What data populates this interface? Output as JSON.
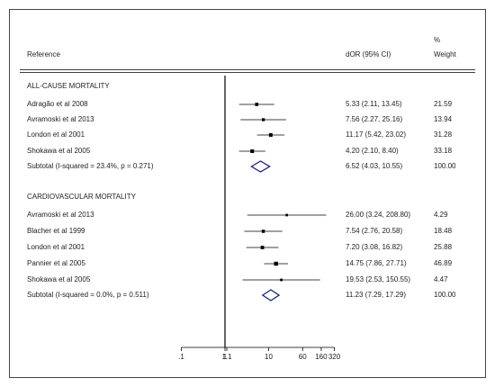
{
  "chart_data": {
    "type": "forest",
    "headers": {
      "reference": "Reference",
      "estimate": "dOR (95% CI)",
      "weight_line1": "%",
      "weight_line2": "Weight"
    },
    "scale": "log",
    "reference_line": 1,
    "x_ticks": [
      {
        "value": 0.1,
        "label": ".1"
      },
      {
        "value": 1,
        "label": "1"
      },
      {
        "value": 1.1,
        "label": "1.1"
      },
      {
        "value": 10,
        "label": "10"
      },
      {
        "value": 60,
        "label": "60"
      },
      {
        "value": 160,
        "label": "160"
      },
      {
        "value": 320,
        "label": "320"
      }
    ],
    "groups": [
      {
        "title": "ALL-CAUSE MORTALITY",
        "studies": [
          {
            "name": "Adragão et al 2008",
            "est": 5.33,
            "lo": 2.11,
            "hi": 13.45,
            "ci_text": "5.33 (2.11, 13.45)",
            "weight": "21.59"
          },
          {
            "name": "Avramoski et al 2013",
            "est": 7.56,
            "lo": 2.27,
            "hi": 25.16,
            "ci_text": "7.56 (2.27, 25.16)",
            "weight": "13.94"
          },
          {
            "name": "London et al 2001",
            "est": 11.17,
            "lo": 5.42,
            "hi": 23.02,
            "ci_text": "11.17 (5.42, 23.02)",
            "weight": "31.28"
          },
          {
            "name": "Shokawa et al 2005",
            "est": 4.2,
            "lo": 2.1,
            "hi": 8.4,
            "ci_text": "4.20 (2.10, 8.40)",
            "weight": "33.18"
          }
        ],
        "subtotal": {
          "label": "Subtotal  (I-squared = 23.4%, p = 0.271)",
          "est": 6.52,
          "lo": 4.03,
          "hi": 10.55,
          "ci_text": "6.52 (4.03, 10.55)",
          "weight": "100.00"
        }
      },
      {
        "title": "CARDIOVASCULAR MORTALITY",
        "studies": [
          {
            "name": "Avramoski et al 2013",
            "est": 26.0,
            "lo": 3.24,
            "hi": 208.8,
            "ci_text": "26.00 (3.24, 208.80)",
            "weight": "4.29"
          },
          {
            "name": "Blacher et al 1999",
            "est": 7.54,
            "lo": 2.76,
            "hi": 20.58,
            "ci_text": "7.54 (2.76, 20.58)",
            "weight": "18.48"
          },
          {
            "name": "London et al 2001",
            "est": 7.2,
            "lo": 3.08,
            "hi": 16.82,
            "ci_text": "7.20 (3.08, 16.82)",
            "weight": "25.88"
          },
          {
            "name": "Pannier et al 2005",
            "est": 14.75,
            "lo": 7.86,
            "hi": 27.71,
            "ci_text": "14.75 (7.86, 27.71)",
            "weight": "46.89"
          },
          {
            "name": "Shokawa et al 2005",
            "est": 19.53,
            "lo": 2.53,
            "hi": 150.55,
            "ci_text": "19.53 (2.53, 150.55)",
            "weight": "4.47"
          }
        ],
        "subtotal": {
          "label": "Subtotal  (I-squared = 0.0%, p = 0.511)",
          "est": 11.23,
          "lo": 7.29,
          "hi": 17.29,
          "ci_text": "11.23 (7.29, 17.29)",
          "weight": "100.00"
        }
      }
    ],
    "colors": {
      "line": "#000000",
      "diamond": "#1a237e",
      "frame": "#444444"
    }
  }
}
